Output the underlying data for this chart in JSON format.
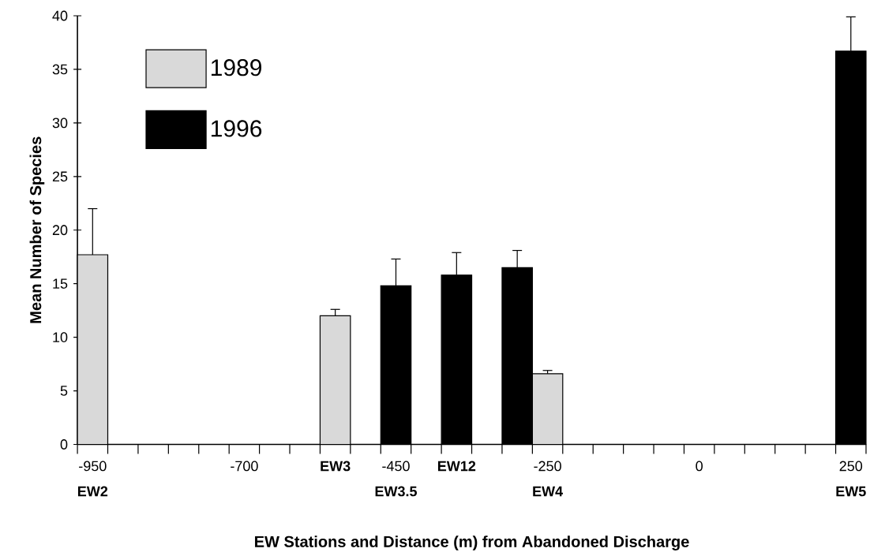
{
  "chart_data": {
    "type": "bar",
    "xlabel": "EW Stations and Distance (m) from Abandoned Discharge",
    "ylabel": "Mean Number of Species",
    "categories": [
      "-950 **EW2**",
      null,
      null,
      null,
      null,
      "-700",
      null,
      null,
      "**EW3**",
      null,
      "-450 **EW3.5**",
      null,
      "**EW12**",
      null,
      null,
      "-250 **EW4**",
      null,
      null,
      null,
      null,
      "0",
      null,
      null,
      null,
      null,
      "250 **EW5**"
    ],
    "series": [
      {
        "name": "1989",
        "color": "#d9d9d9",
        "values": [
          17.7,
          null,
          null,
          null,
          null,
          null,
          null,
          null,
          12.0,
          null,
          null,
          null,
          null,
          null,
          null,
          6.6,
          null,
          null,
          null,
          null,
          null,
          null,
          null,
          null,
          null,
          null
        ],
        "errors": [
          4.3,
          null,
          null,
          null,
          null,
          null,
          null,
          null,
          0.6,
          null,
          null,
          null,
          null,
          null,
          null,
          0.3,
          null,
          null,
          null,
          null,
          null,
          null,
          null,
          null,
          null,
          null
        ]
      },
      {
        "name": "1996",
        "color": "#000000",
        "values": [
          null,
          null,
          null,
          null,
          null,
          null,
          null,
          null,
          null,
          null,
          14.8,
          null,
          15.8,
          null,
          16.5,
          null,
          null,
          null,
          null,
          null,
          null,
          null,
          null,
          null,
          null,
          36.7
        ],
        "errors": [
          null,
          null,
          null,
          null,
          null,
          null,
          null,
          null,
          null,
          null,
          2.5,
          null,
          2.1,
          null,
          1.6,
          null,
          null,
          null,
          null,
          null,
          null,
          null,
          null,
          null,
          null,
          3.2
        ]
      }
    ],
    "ylim": [
      0,
      40
    ],
    "yticks": [
      0,
      5,
      10,
      15,
      20,
      25,
      30,
      35,
      40
    ],
    "legend": "top left",
    "grid": false
  }
}
